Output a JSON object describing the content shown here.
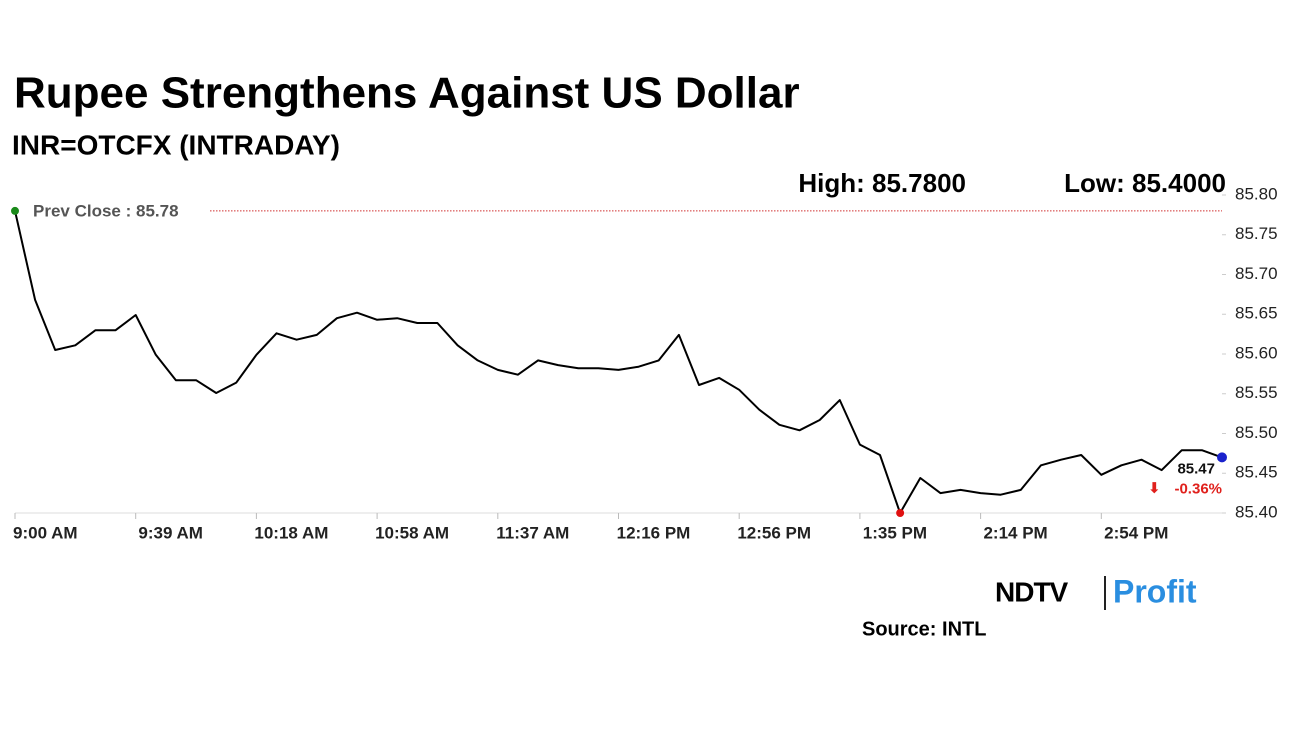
{
  "chart_data": {
    "type": "line",
    "title": "Rupee Strengthens Against US Dollar",
    "subtitle": "INR=OTCFX (INTRADAY)",
    "high_label": "High: 85.7800",
    "low_label": "Low: 85.4000",
    "reference_line": {
      "value": 85.78,
      "label": "Prev Close : 85.78",
      "color": "#d03030"
    },
    "last_value_label": "85.47",
    "change_label": "-0.36%",
    "change_color": "#e0201c",
    "source": "Source: INTL",
    "logo": {
      "left": "NDTV",
      "right": "Profit"
    },
    "color": "#000000",
    "marker_colors": {
      "first": "#1a8a1a",
      "low": "#e01010",
      "last": "#1a22cc"
    },
    "categories": [
      "9:00 AM",
      null,
      null,
      null,
      null,
      null,
      "9:39 AM",
      null,
      null,
      null,
      null,
      null,
      "10:18 AM",
      null,
      null,
      null,
      null,
      null,
      "10:58 AM",
      null,
      null,
      null,
      null,
      null,
      "11:37 AM",
      null,
      null,
      null,
      null,
      null,
      "12:16 PM",
      null,
      null,
      null,
      null,
      null,
      "12:56 PM",
      null,
      null,
      null,
      null,
      null,
      "1:35 PM",
      null,
      null,
      null,
      null,
      null,
      "2:14 PM",
      null,
      null,
      null,
      null,
      null,
      "2:54 PM",
      null,
      null,
      null,
      null,
      null,
      null
    ],
    "values": [
      85.78,
      85.668,
      85.605,
      85.611,
      85.63,
      85.63,
      85.649,
      85.599,
      85.567,
      85.567,
      85.551,
      85.564,
      85.599,
      85.626,
      85.618,
      85.624,
      85.645,
      85.652,
      85.643,
      85.645,
      85.639,
      85.639,
      85.611,
      85.592,
      85.58,
      85.574,
      85.592,
      85.586,
      85.582,
      85.582,
      85.58,
      85.584,
      85.592,
      85.624,
      85.561,
      85.57,
      85.555,
      85.53,
      85.511,
      85.504,
      85.517,
      85.542,
      85.486,
      85.473,
      85.4,
      85.444,
      85.425,
      85.429,
      85.425,
      85.423,
      85.429,
      85.46,
      85.467,
      85.473,
      85.448,
      85.46,
      85.467,
      85.454,
      85.479,
      85.479,
      85.47
    ],
    "ylim": [
      85.4,
      85.8
    ],
    "yticks": [
      {
        "value": 85.4,
        "label": "85.40"
      },
      85.45,
      {
        "value": 85.5,
        "label": "85.50"
      },
      85.55,
      {
        "value": 85.6,
        "label": "85.60"
      },
      85.65,
      {
        "value": 85.7,
        "label": "85.70"
      },
      85.75,
      {
        "value": 85.8,
        "label": "85.80"
      }
    ]
  }
}
